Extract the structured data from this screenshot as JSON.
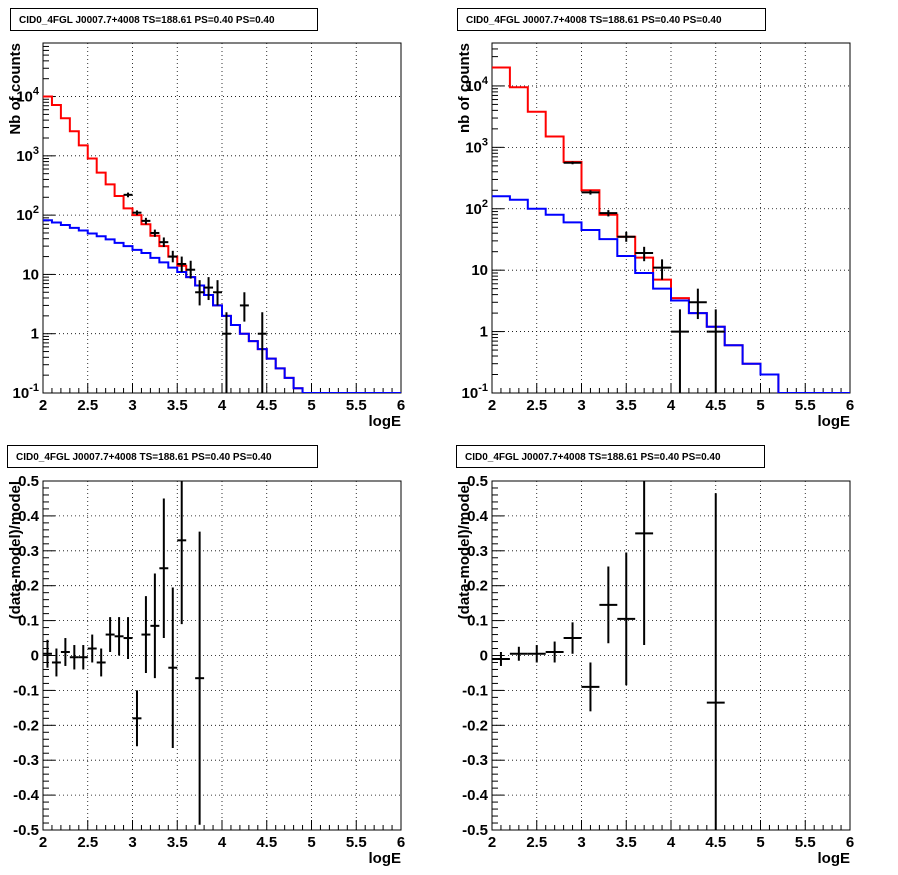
{
  "chart_data": [
    {
      "type": "line",
      "title": "CID0_4FGL J0007.7+4008 TS=188.61 PS=0.40 PS=0.40",
      "xlabel": "logE",
      "ylabel": "Nb of counts",
      "xlim": [
        2,
        6
      ],
      "ylim": [
        0.1,
        80000
      ],
      "yscale": "log",
      "grid": true,
      "x_ticks": [
        "2",
        "2.5",
        "3",
        "3.5",
        "4",
        "4.5",
        "5",
        "5.5",
        "6"
      ],
      "y_ticks": [
        "10^-1",
        "1",
        "10",
        "10^2",
        "10^3",
        "10^4"
      ],
      "bin_edges": [
        2.0,
        2.1,
        2.2,
        2.3,
        2.4,
        2.5,
        2.6,
        2.7,
        2.8,
        2.9,
        3.0,
        3.1,
        3.2,
        3.3,
        3.4,
        3.5,
        3.6,
        3.7,
        3.8,
        3.9,
        4.0,
        4.1,
        4.2,
        4.3,
        4.4,
        4.5,
        4.6,
        4.7,
        4.8,
        4.9,
        5.0,
        5.1,
        5.2,
        5.3,
        5.4,
        5.5,
        5.6,
        5.7,
        5.8,
        5.9,
        6.0
      ],
      "series": [
        {
          "color": "#ff0000",
          "values": [
            10000,
            7200,
            4300,
            2600,
            1500,
            900,
            520,
            330,
            210,
            130,
            100,
            70,
            45,
            30,
            20,
            14,
            9,
            6.5,
            4.5,
            3,
            2,
            1.4,
            1,
            0.75,
            0.55,
            0.38,
            0.26,
            0.18,
            0.12,
            0.1,
            0.1,
            0.1,
            0.1,
            0.1,
            0.1,
            0.1,
            0.1,
            0.1,
            0.1,
            0.1
          ]
        },
        {
          "color": "#0000ff",
          "values": [
            82,
            75,
            68,
            61,
            55,
            49,
            44,
            39,
            34,
            30,
            26,
            23,
            19,
            16,
            13,
            11,
            9,
            6.5,
            4.5,
            3,
            2,
            1.4,
            1,
            0.75,
            0.55,
            0.38,
            0.26,
            0.18,
            0.12,
            0.1,
            0.1,
            0.1,
            0.1,
            0.1,
            0.1,
            0.1,
            0.1,
            0.1,
            0.1,
            0.1
          ]
        }
      ],
      "points": [
        {
          "x": 2.95,
          "y": 220,
          "ylo": 200,
          "yhi": 240
        },
        {
          "x": 3.05,
          "y": 110,
          "ylo": 100,
          "yhi": 120
        },
        {
          "x": 3.15,
          "y": 80,
          "ylo": 70,
          "yhi": 90
        },
        {
          "x": 3.25,
          "y": 50,
          "ylo": 43,
          "yhi": 57
        },
        {
          "x": 3.35,
          "y": 35,
          "ylo": 29,
          "yhi": 42
        },
        {
          "x": 3.45,
          "y": 20,
          "ylo": 16,
          "yhi": 25
        },
        {
          "x": 3.55,
          "y": 15,
          "ylo": 11,
          "yhi": 20
        },
        {
          "x": 3.65,
          "y": 12,
          "ylo": 8.5,
          "yhi": 17
        },
        {
          "x": 3.75,
          "y": 5,
          "ylo": 3,
          "yhi": 8
        },
        {
          "x": 3.85,
          "y": 6,
          "ylo": 3.7,
          "yhi": 9
        },
        {
          "x": 3.95,
          "y": 5,
          "ylo": 3,
          "yhi": 8
        },
        {
          "x": 4.05,
          "y": 1,
          "ylo": 0.1,
          "yhi": 2.3
        },
        {
          "x": 4.25,
          "y": 3,
          "ylo": 1.6,
          "yhi": 5
        },
        {
          "x": 4.45,
          "y": 1,
          "ylo": 0.1,
          "yhi": 2.3
        }
      ]
    },
    {
      "type": "line",
      "title": "CID0_4FGL J0007.7+4008 TS=188.61 PS=0.40 PS=0.40",
      "xlabel": "logE",
      "ylabel": "nb of counts",
      "xlim": [
        2,
        6
      ],
      "ylim": [
        0.1,
        50000
      ],
      "yscale": "log",
      "grid": true,
      "x_ticks": [
        "2",
        "2.5",
        "3",
        "3.5",
        "4",
        "4.5",
        "5",
        "5.5",
        "6"
      ],
      "y_ticks": [
        "10^-1",
        "1",
        "10",
        "10^2",
        "10^3",
        "10^4"
      ],
      "bin_edges": [
        2.0,
        2.2,
        2.4,
        2.6,
        2.8,
        3.0,
        3.2,
        3.4,
        3.6,
        3.8,
        4.0,
        4.2,
        4.4,
        4.6,
        4.8,
        5.0,
        5.2,
        5.4,
        5.6,
        5.8,
        6.0
      ],
      "series": [
        {
          "color": "#ff0000",
          "values": [
            20000,
            9500,
            3800,
            1500,
            580,
            200,
            80,
            35,
            16,
            7,
            3.5,
            2,
            1.2,
            0.6,
            0.3,
            0.2,
            0.1,
            0.1,
            0.1,
            0.1
          ]
        },
        {
          "color": "#0000ff",
          "values": [
            160,
            140,
            100,
            80,
            60,
            45,
            32,
            17,
            9,
            5,
            3.2,
            2,
            1.2,
            0.6,
            0.3,
            0.2,
            0.1,
            0.1,
            0.1,
            0.1
          ]
        }
      ],
      "points": [
        {
          "x": 2.9,
          "y": 560,
          "ylo": 530,
          "yhi": 590
        },
        {
          "x": 3.1,
          "y": 185,
          "ylo": 170,
          "yhi": 200
        },
        {
          "x": 3.3,
          "y": 85,
          "ylo": 75,
          "yhi": 95
        },
        {
          "x": 3.5,
          "y": 35,
          "ylo": 29,
          "yhi": 42
        },
        {
          "x": 3.7,
          "y": 19,
          "ylo": 14,
          "yhi": 24
        },
        {
          "x": 3.9,
          "y": 11,
          "ylo": 7,
          "yhi": 15
        },
        {
          "x": 4.1,
          "y": 1,
          "ylo": 0.1,
          "yhi": 2.3
        },
        {
          "x": 4.3,
          "y": 3,
          "ylo": 1.6,
          "yhi": 5
        },
        {
          "x": 4.5,
          "y": 1,
          "ylo": 0.1,
          "yhi": 2.3
        }
      ]
    },
    {
      "type": "scatter",
      "title": "CID0_4FGL J0007.7+4008 TS=188.61 PS=0.40 PS=0.40",
      "xlabel": "logE",
      "ylabel": "(data-model)/model",
      "xlim": [
        2,
        6
      ],
      "ylim": [
        -0.5,
        0.5
      ],
      "grid": true,
      "x_ticks": [
        "2",
        "2.5",
        "3",
        "3.5",
        "4",
        "4.5",
        "5",
        "5.5",
        "6"
      ],
      "y_ticks": [
        "-0.5",
        "-0.4",
        "-0.3",
        "-0.2",
        "-0.1",
        "0",
        "0.1",
        "0.2",
        "0.3",
        "0.4",
        "0.5"
      ],
      "points": [
        {
          "x": 2.05,
          "y": 0.005,
          "err": 0.04,
          "xerr": 0.05
        },
        {
          "x": 2.15,
          "y": -0.02,
          "err": 0.04,
          "xerr": 0.05
        },
        {
          "x": 2.25,
          "y": 0.01,
          "err": 0.04,
          "xerr": 0.05
        },
        {
          "x": 2.35,
          "y": -0.005,
          "err": 0.035,
          "xerr": 0.05
        },
        {
          "x": 2.45,
          "y": -0.005,
          "err": 0.035,
          "xerr": 0.05
        },
        {
          "x": 2.55,
          "y": 0.02,
          "err": 0.04,
          "xerr": 0.05
        },
        {
          "x": 2.65,
          "y": -0.02,
          "err": 0.04,
          "xerr": 0.05
        },
        {
          "x": 2.75,
          "y": 0.06,
          "err": 0.05,
          "xerr": 0.05
        },
        {
          "x": 2.85,
          "y": 0.055,
          "err": 0.055,
          "xerr": 0.05
        },
        {
          "x": 2.95,
          "y": 0.05,
          "err": 0.06,
          "xerr": 0.05
        },
        {
          "x": 3.05,
          "y": -0.18,
          "err": 0.08,
          "xerr": 0.05
        },
        {
          "x": 3.15,
          "y": 0.06,
          "err": 0.11,
          "xerr": 0.05
        },
        {
          "x": 3.25,
          "y": 0.085,
          "err": 0.15,
          "xerr": 0.05
        },
        {
          "x": 3.35,
          "y": 0.25,
          "err": 0.2,
          "xerr": 0.05
        },
        {
          "x": 3.45,
          "y": -0.035,
          "err": 0.23,
          "xerr": 0.05
        },
        {
          "x": 3.55,
          "y": 0.33,
          "err": 0.24,
          "xerr": 0.05
        },
        {
          "x": 3.75,
          "y": -0.065,
          "err": 0.42,
          "xerr": 0.05
        }
      ]
    },
    {
      "type": "scatter",
      "title": "CID0_4FGL J0007.7+4008 TS=188.61 PS=0.40 PS=0.40",
      "xlabel": "logE",
      "ylabel": "(data-model)/model",
      "xlim": [
        2,
        6
      ],
      "ylim": [
        -0.5,
        0.5
      ],
      "grid": true,
      "x_ticks": [
        "2",
        "2.5",
        "3",
        "3.5",
        "4",
        "4.5",
        "5",
        "5.5",
        "6"
      ],
      "y_ticks": [
        "-0.5",
        "-0.4",
        "-0.3",
        "-0.2",
        "-0.1",
        "0",
        "0.1",
        "0.2",
        "0.3",
        "0.4",
        "0.5"
      ],
      "points": [
        {
          "x": 2.1,
          "y": -0.01,
          "err": 0.02,
          "xerr": 0.1
        },
        {
          "x": 2.3,
          "y": 0.005,
          "err": 0.02,
          "xerr": 0.1
        },
        {
          "x": 2.5,
          "y": 0.005,
          "err": 0.025,
          "xerr": 0.1
        },
        {
          "x": 2.7,
          "y": 0.01,
          "err": 0.03,
          "xerr": 0.1
        },
        {
          "x": 2.9,
          "y": 0.05,
          "err": 0.045,
          "xerr": 0.1
        },
        {
          "x": 3.1,
          "y": -0.09,
          "err": 0.07,
          "xerr": 0.1
        },
        {
          "x": 3.3,
          "y": 0.145,
          "err": 0.11,
          "xerr": 0.1
        },
        {
          "x": 3.5,
          "y": 0.105,
          "err": 0.19,
          "xerr": 0.1
        },
        {
          "x": 3.7,
          "y": 0.35,
          "err": 0.32,
          "xerr": 0.1
        },
        {
          "x": 4.5,
          "y": -0.135,
          "err": 0.6,
          "xerr": 0.1
        }
      ]
    }
  ]
}
